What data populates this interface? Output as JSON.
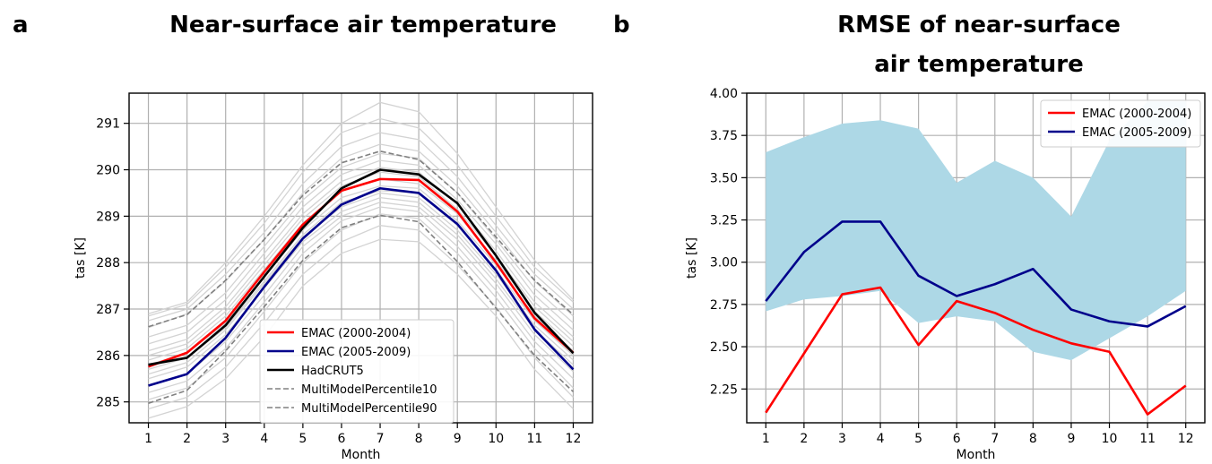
{
  "chart_data": [
    {
      "panel_label": "a",
      "type": "line",
      "title": "Near-surface air temperature",
      "xlabel": "Month",
      "ylabel": "tas [K]",
      "x": [
        1,
        2,
        3,
        4,
        5,
        6,
        7,
        8,
        9,
        10,
        11,
        12
      ],
      "xlim": [
        0.5,
        12.5
      ],
      "ylim": [
        284.55,
        291.65
      ],
      "yticks": [
        285,
        286,
        287,
        288,
        289,
        290,
        291
      ],
      "grid": true,
      "legend_position": "lower-center",
      "series": [
        {
          "name": "EMAC (2000-2004)",
          "color": "#ff0000",
          "style": "solid",
          "values": [
            285.76,
            286.06,
            286.75,
            287.8,
            288.82,
            289.55,
            289.8,
            289.78,
            289.1,
            288.0,
            286.8,
            286.06
          ]
        },
        {
          "name": "EMAC (2005-2009)",
          "color": "#00008b",
          "style": "solid",
          "values": [
            285.35,
            285.6,
            286.38,
            287.48,
            288.52,
            289.25,
            289.6,
            289.5,
            288.83,
            287.83,
            286.56,
            285.7
          ]
        },
        {
          "name": "HadCRUT5",
          "color": "#000000",
          "style": "solid",
          "values": [
            285.8,
            285.95,
            286.65,
            287.7,
            288.75,
            289.6,
            290.0,
            289.9,
            289.28,
            288.15,
            286.92,
            286.05
          ]
        },
        {
          "name": "MultiModelPercentile10",
          "color": "#808080",
          "style": "dashed",
          "values": [
            284.97,
            285.25,
            286.1,
            287.05,
            288.05,
            288.75,
            289.02,
            288.88,
            288.02,
            287.02,
            286.0,
            285.22
          ]
        },
        {
          "name": "MultiModelPercentile90",
          "color": "#808080",
          "style": "dashed",
          "values": [
            286.62,
            286.88,
            287.62,
            288.5,
            289.45,
            290.15,
            290.4,
            290.22,
            289.5,
            288.55,
            287.62,
            286.88
          ]
        }
      ],
      "background_models": {
        "color": "#d3d3d3",
        "values": [
          [
            284.65,
            284.9,
            285.5,
            286.4,
            287.5,
            288.2,
            288.5,
            288.45,
            287.75,
            286.85,
            285.7,
            284.85
          ],
          [
            284.85,
            285.1,
            285.75,
            286.7,
            287.75,
            288.45,
            288.8,
            288.7,
            287.95,
            287.05,
            285.95,
            285.1
          ],
          [
            285.05,
            285.3,
            285.95,
            286.95,
            288.0,
            288.7,
            289.05,
            288.95,
            288.2,
            287.25,
            286.15,
            285.3
          ],
          [
            285.2,
            285.45,
            286.15,
            287.15,
            288.2,
            288.9,
            289.2,
            289.1,
            288.35,
            287.4,
            286.3,
            285.5
          ],
          [
            285.35,
            285.6,
            286.3,
            287.3,
            288.35,
            289.0,
            289.3,
            289.2,
            288.5,
            287.55,
            286.45,
            285.65
          ],
          [
            285.5,
            285.75,
            286.45,
            287.45,
            288.45,
            289.1,
            289.4,
            289.3,
            288.6,
            287.65,
            286.55,
            285.8
          ],
          [
            285.6,
            285.85,
            286.55,
            287.55,
            288.55,
            289.2,
            289.5,
            289.4,
            288.7,
            287.75,
            286.65,
            285.9
          ],
          [
            285.7,
            285.95,
            286.6,
            287.6,
            288.6,
            289.3,
            289.55,
            289.5,
            288.8,
            287.85,
            286.75,
            286.0
          ],
          [
            285.8,
            286.05,
            286.7,
            287.7,
            288.7,
            289.4,
            289.65,
            289.6,
            288.9,
            287.95,
            286.85,
            286.1
          ],
          [
            285.9,
            286.15,
            286.85,
            287.85,
            288.85,
            289.55,
            289.8,
            289.7,
            289.05,
            288.05,
            286.95,
            286.2
          ],
          [
            286.0,
            286.25,
            286.95,
            287.95,
            288.95,
            289.65,
            289.95,
            289.85,
            289.15,
            288.15,
            287.05,
            286.3
          ],
          [
            286.1,
            286.35,
            287.05,
            288.05,
            289.05,
            289.75,
            290.05,
            289.95,
            289.25,
            288.25,
            287.15,
            286.4
          ],
          [
            286.25,
            286.5,
            287.2,
            288.2,
            289.2,
            289.9,
            290.2,
            290.1,
            289.35,
            288.4,
            287.3,
            286.55
          ],
          [
            286.4,
            286.65,
            287.35,
            288.35,
            289.35,
            290.05,
            290.35,
            290.25,
            289.5,
            288.5,
            287.45,
            286.7
          ],
          [
            286.6,
            286.9,
            287.6,
            288.5,
            289.5,
            290.25,
            290.55,
            290.4,
            289.65,
            288.65,
            287.6,
            286.85
          ],
          [
            286.75,
            287.0,
            287.75,
            288.65,
            289.7,
            290.5,
            290.8,
            290.65,
            289.85,
            288.8,
            287.75,
            287.0
          ],
          [
            286.85,
            287.1,
            287.9,
            288.85,
            289.95,
            290.8,
            291.1,
            290.9,
            290.1,
            289.0,
            287.9,
            287.15
          ],
          [
            286.9,
            287.15,
            288.0,
            289.0,
            290.1,
            291.0,
            291.45,
            291.25,
            290.35,
            289.2,
            288.05,
            287.2
          ]
        ]
      }
    },
    {
      "panel_label": "b",
      "type": "line",
      "title": "RMSE of near-surface air temperature",
      "title_lines": [
        "RMSE of near-surface",
        "air temperature"
      ],
      "xlabel": "Month",
      "ylabel": "tas [K]",
      "x": [
        1,
        2,
        3,
        4,
        5,
        6,
        7,
        8,
        9,
        10,
        11,
        12
      ],
      "xlim": [
        0.5,
        12.5
      ],
      "ylim": [
        2.05,
        4.0
      ],
      "yticks": [
        2.25,
        2.5,
        2.75,
        3.0,
        3.25,
        3.5,
        3.75,
        4.0
      ],
      "ytick_labels": [
        "2.25",
        "2.50",
        "2.75",
        "3.00",
        "3.25",
        "3.50",
        "3.75",
        "4.00"
      ],
      "grid": true,
      "legend_position": "top-right",
      "band": {
        "color": "#add8e6",
        "upper": [
          3.65,
          3.74,
          3.82,
          3.84,
          3.79,
          3.47,
          3.6,
          3.5,
          3.27,
          3.72,
          3.95,
          3.95
        ],
        "lower": [
          2.71,
          2.78,
          2.8,
          2.83,
          2.64,
          2.68,
          2.65,
          2.47,
          2.42,
          2.55,
          2.68,
          2.83
        ]
      },
      "series": [
        {
          "name": "EMAC (2000-2004)",
          "color": "#ff0000",
          "style": "solid",
          "values": [
            2.11,
            2.46,
            2.81,
            2.85,
            2.51,
            2.77,
            2.7,
            2.6,
            2.52,
            2.47,
            2.1,
            2.27
          ]
        },
        {
          "name": "EMAC (2005-2009)",
          "color": "#00008b",
          "style": "solid",
          "values": [
            2.77,
            3.06,
            3.24,
            3.24,
            2.92,
            2.8,
            2.87,
            2.96,
            2.72,
            2.65,
            2.62,
            2.74
          ]
        }
      ]
    }
  ]
}
